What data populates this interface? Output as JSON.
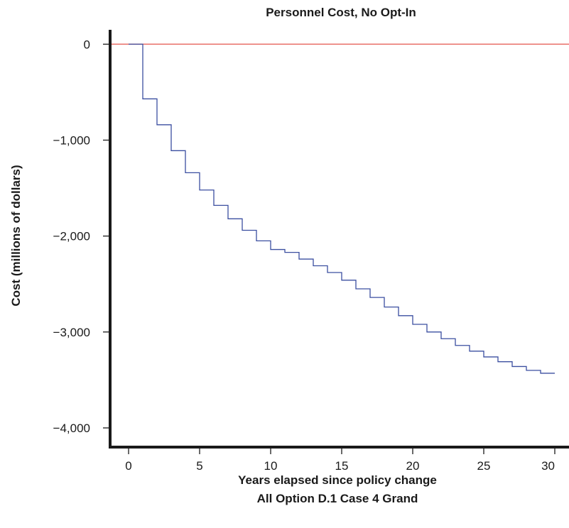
{
  "chart_data": {
    "type": "line",
    "step": true,
    "title": "Personnel Cost, No Opt-In",
    "xlabel": "Years elapsed since policy change",
    "xlabel2": "All Option D.1 Case 4 Grand",
    "ylabel": "Cost (millions of dollars)",
    "xlim": [
      -1.3,
      31
    ],
    "ylim": [
      -4200,
      150
    ],
    "xticks": [
      0,
      5,
      10,
      15,
      20,
      25,
      30
    ],
    "xtick_labels": [
      "0",
      "5",
      "10",
      "15",
      "20",
      "25",
      "30"
    ],
    "yticks": [
      0,
      -1000,
      -2000,
      -3000,
      -4000
    ],
    "ytick_labels": [
      "0",
      "−1,000",
      "−2,000",
      "−3,000",
      "−4,000"
    ],
    "grid": false,
    "reference_line": {
      "y": 0,
      "color": "#e8706a"
    },
    "series": [
      {
        "color": "#3b4fa0",
        "x": [
          0,
          1,
          2,
          3,
          4,
          5,
          6,
          7,
          8,
          9,
          10,
          11,
          12,
          13,
          14,
          15,
          16,
          17,
          18,
          19,
          20,
          21,
          22,
          23,
          24,
          25,
          26,
          27,
          28,
          29,
          30
        ],
        "y": [
          0,
          -570,
          -840,
          -1110,
          -1340,
          -1520,
          -1680,
          -1820,
          -1940,
          -2050,
          -2140,
          -2170,
          -2240,
          -2310,
          -2380,
          -2460,
          -2550,
          -2640,
          -2740,
          -2830,
          -2920,
          -3000,
          -3070,
          -3140,
          -3200,
          -3260,
          -3310,
          -3360,
          -3400,
          -3430,
          -3430
        ]
      }
    ]
  }
}
